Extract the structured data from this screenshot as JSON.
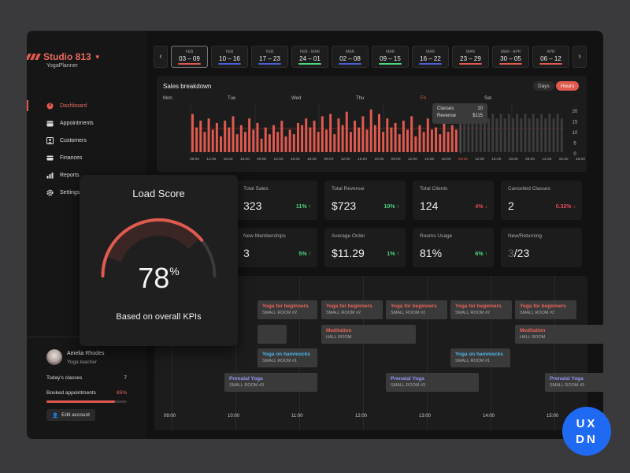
{
  "brand": {
    "name": "Studio 813",
    "sub": "YogaPlanner",
    "accent": "#e05a4f"
  },
  "nav": [
    {
      "label": "Dashboard",
      "icon": "dashboard-icon",
      "active": true
    },
    {
      "label": "Appointments",
      "icon": "calendar-icon",
      "active": false
    },
    {
      "label": "Customers",
      "icon": "person-icon",
      "active": false
    },
    {
      "label": "Finances",
      "icon": "card-icon",
      "active": false
    },
    {
      "label": "Reports",
      "icon": "bar-chart-icon",
      "active": false
    },
    {
      "label": "Settings",
      "icon": "gear-icon",
      "active": false
    }
  ],
  "user": {
    "name": "Amelia Rhodes",
    "role": "Yoga teacher",
    "classes_label": "Today's classes",
    "classes_value": "7",
    "booked_label": "Booked appointments",
    "booked_value": "85%",
    "booked_fraction": 0.85,
    "edit_label": "Edit account"
  },
  "dates": [
    {
      "month": "FEB",
      "range": "03 – 09",
      "color": "#e05a4f",
      "active": true
    },
    {
      "month": "FEB",
      "range": "10 – 16",
      "color": "#4a5fd8",
      "active": false
    },
    {
      "month": "FEB",
      "range": "17 – 23",
      "color": "#4a5fd8",
      "active": false
    },
    {
      "month": "FEB - MAR",
      "range": "24 – 01",
      "color": "#4ed77f",
      "active": false
    },
    {
      "month": "MAR",
      "range": "02 – 08",
      "color": "#4a5fd8",
      "active": false
    },
    {
      "month": "MAR",
      "range": "09 – 15",
      "color": "#4ed77f",
      "active": false
    },
    {
      "month": "MAR",
      "range": "16 – 22",
      "color": "#4a5fd8",
      "active": false
    },
    {
      "month": "MAR",
      "range": "23 – 29",
      "color": "#e05a4f",
      "active": false
    },
    {
      "month": "MAR - APR",
      "range": "30 – 05",
      "color": "#e05a4f",
      "active": false
    },
    {
      "month": "APR",
      "range": "06 – 12",
      "color": "#e05a4f",
      "active": false
    }
  ],
  "sales": {
    "title": "Sales breakdown",
    "toggle_days": "Days",
    "toggle_hours": "Hours",
    "days": [
      "Mon",
      "Tue",
      "Wed",
      "Thu",
      "Fri",
      "Sat"
    ],
    "tooltip": {
      "classes_label": "Classes",
      "classes_value": "10",
      "revenue_label": "Revenue",
      "revenue_value": "$115"
    }
  },
  "chart_data": {
    "type": "bar",
    "title": "Sales breakdown",
    "ylim": [
      0,
      20
    ],
    "yticks": [
      "20",
      "15",
      "10",
      "5",
      "0"
    ],
    "xticks": [
      "09:00",
      "12:00",
      "15:00",
      "18:00",
      "09:00",
      "12:00",
      "15:00",
      "18:00",
      "09:00",
      "12:00",
      "15:00",
      "18:00",
      "09:00",
      "12:00",
      "15:00",
      "18:00",
      "09:00",
      "12:00",
      "15:00",
      "18:00",
      "09:00",
      "12:00",
      "15:00",
      "18:00"
    ],
    "highlight_tick_index": 16,
    "values": [
      17,
      11,
      14,
      9,
      15,
      10,
      13,
      7,
      14,
      11,
      16,
      8,
      12,
      9,
      15,
      10,
      13,
      6,
      11,
      8,
      12,
      9,
      14,
      7,
      10,
      8,
      13,
      12,
      15,
      11,
      14,
      9,
      16,
      10,
      17,
      8,
      15,
      12,
      18,
      9,
      14,
      11,
      16,
      10,
      19,
      12,
      17,
      9,
      15,
      11,
      13,
      8,
      14,
      10,
      16,
      7,
      12,
      9,
      15,
      10,
      11,
      8,
      13,
      9,
      12,
      10
    ],
    "actual_count": 66,
    "placeholder_values": [
      17,
      15,
      17,
      15,
      17,
      15,
      17,
      15,
      17,
      15,
      17,
      15,
      17,
      15,
      17,
      15,
      17,
      15,
      17,
      15,
      17,
      15,
      17,
      15,
      17,
      15
    ]
  },
  "kpis": [
    {
      "label": "Total Sales",
      "value": "323",
      "delta": "11%",
      "dir": "up"
    },
    {
      "label": "Total Revenue",
      "value": "$723",
      "delta": "10%",
      "dir": "up"
    },
    {
      "label": "Total Clients",
      "value": "124",
      "delta": "4%",
      "dir": "down"
    },
    {
      "label": "Cancelled Classes",
      "value": "2",
      "delta": "0.32%",
      "dir": "down"
    },
    {
      "label": "New Memberships",
      "value": "3",
      "delta": "5%",
      "dir": "up"
    },
    {
      "label": "Average Order",
      "value": "$11.29",
      "delta": "1%",
      "dir": "up"
    },
    {
      "label": "Rooms Usage",
      "value": "81%",
      "delta": "6%",
      "dir": "up"
    },
    {
      "label": "New/Returning",
      "value_dim": "3",
      "value": "/23",
      "delta": "",
      "dir": ""
    }
  ],
  "schedule": {
    "times": [
      "09:00",
      "10:00",
      "11:00",
      "12:00",
      "13:00",
      "14:00",
      "15:00"
    ],
    "events": [
      {
        "title": "Yoga for beginners",
        "room": "SMALL ROOM #2",
        "color": "#e8655a"
      },
      {
        "title": "Yoga for beginners",
        "room": "SMALL ROOM #2",
        "color": "#e8655a"
      },
      {
        "title": "Yoga for beginners",
        "room": "SMALL ROOM #2",
        "color": "#e8655a"
      },
      {
        "title": "Yoga for beginners",
        "room": "SMALL ROOM #2",
        "color": "#e8655a"
      },
      {
        "title": "Yoga for beginners",
        "room": "SMALL ROOM #2",
        "color": "#e8655a"
      },
      {
        "title": "Meditation",
        "room": "HALL ROOM",
        "color": "#e8655a"
      },
      {
        "title": "Meditation",
        "room": "HALL ROOM",
        "color": "#e8655a"
      },
      {
        "title": "Yoga on hammocks",
        "room": "SMALL ROOM #1",
        "color": "#4db6e8"
      },
      {
        "title": "Yoga on hammocks",
        "room": "SMALL ROOM #1",
        "color": "#4db6e8"
      },
      {
        "title": "Prenatal Yoga",
        "room": "SMALL ROOM #3",
        "color": "#8f96f0"
      },
      {
        "title": "Prenatal Yoga",
        "room": "SMALL ROOM #3",
        "color": "#8f96f0"
      },
      {
        "title": "Prenatal Yoga",
        "room": "SMALL ROOM #3",
        "color": "#8f96f0"
      }
    ]
  },
  "load": {
    "title": "Load Score",
    "value": "78",
    "unit": "%",
    "fraction": 0.78,
    "caption": "Based on overall KPIs"
  },
  "badge": {
    "line1": "UX",
    "line2": "DN"
  }
}
